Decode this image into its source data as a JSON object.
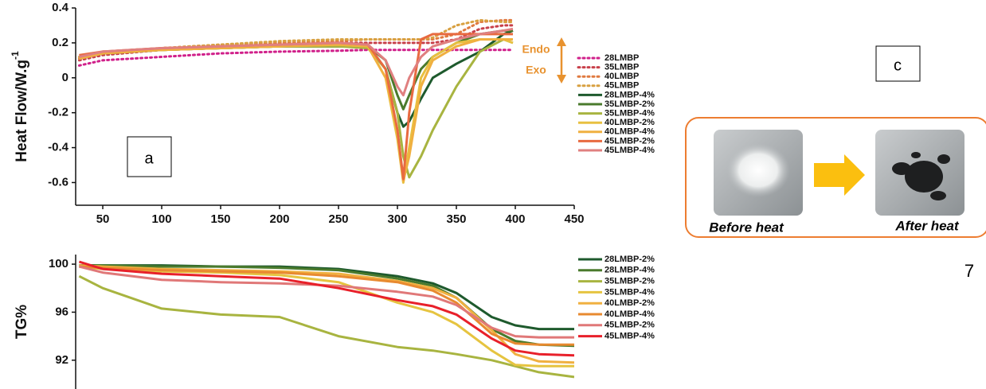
{
  "chart_data": [
    {
      "type": "line",
      "y_label": "Heat Flow/W.g",
      "y_label_sup": "-1",
      "annotations": [
        "Endo",
        "Exo"
      ],
      "xlim": [
        27,
        450
      ],
      "xticks": [
        50,
        100,
        150,
        200,
        250,
        300,
        350,
        400,
        450
      ],
      "ylim": [
        -0.73,
        0.4
      ],
      "yticks": [
        -0.6,
        -0.4,
        -0.2,
        0.0,
        0.2,
        0.4
      ],
      "x": [
        30,
        50,
        100,
        150,
        200,
        250,
        275,
        290,
        300,
        305,
        310,
        320,
        330,
        350,
        370,
        390,
        398
      ],
      "series": [
        {
          "name": "28LMBP",
          "color": "#d0208a",
          "line_style": "dotted",
          "values": [
            0.07,
            0.1,
            0.12,
            0.14,
            0.15,
            0.155,
            0.16,
            0.16,
            0.16,
            0.16,
            0.16,
            0.16,
            0.16,
            0.16,
            0.16,
            0.16,
            0.16
          ]
        },
        {
          "name": "35LMBP",
          "color": "#c8404a",
          "line_style": "dotted",
          "values": [
            0.1,
            0.13,
            0.16,
            0.18,
            0.19,
            0.2,
            0.2,
            0.2,
            0.2,
            0.2,
            0.2,
            0.2,
            0.2,
            0.22,
            0.28,
            0.3,
            0.3
          ]
        },
        {
          "name": "40LMBP",
          "color": "#e07a40",
          "line_style": "dotted",
          "values": [
            0.11,
            0.14,
            0.17,
            0.19,
            0.2,
            0.21,
            0.22,
            0.22,
            0.22,
            0.22,
            0.22,
            0.22,
            0.22,
            0.25,
            0.32,
            0.33,
            0.33
          ]
        },
        {
          "name": "45LMBP",
          "color": "#d8a040",
          "line_style": "dotted",
          "values": [
            0.12,
            0.15,
            0.17,
            0.19,
            0.21,
            0.22,
            0.22,
            0.22,
            0.22,
            0.22,
            0.22,
            0.22,
            0.23,
            0.3,
            0.33,
            0.32,
            0.32
          ]
        },
        {
          "name": "28LMBP-4%",
          "color": "#1e5a2d",
          "values": [
            0.12,
            0.14,
            0.16,
            0.17,
            0.18,
            0.18,
            0.18,
            0.05,
            -0.2,
            -0.28,
            -0.25,
            -0.12,
            0.0,
            0.08,
            0.15,
            0.25,
            0.27
          ]
        },
        {
          "name": "35LMBP-2%",
          "color": "#4a7a2c",
          "values": [
            0.12,
            0.14,
            0.16,
            0.17,
            0.18,
            0.18,
            0.18,
            0.1,
            -0.1,
            -0.18,
            -0.1,
            0.05,
            0.12,
            0.2,
            0.25,
            0.27,
            0.27
          ]
        },
        {
          "name": "35LMBP-4%",
          "color": "#a8b440",
          "values": [
            0.11,
            0.14,
            0.16,
            0.17,
            0.18,
            0.18,
            0.17,
            0.05,
            -0.2,
            -0.45,
            -0.57,
            -0.45,
            -0.3,
            -0.05,
            0.15,
            0.22,
            0.2
          ]
        },
        {
          "name": "40LMBP-2%",
          "color": "#e8c040",
          "values": [
            0.12,
            0.15,
            0.16,
            0.17,
            0.18,
            0.19,
            0.18,
            0.0,
            -0.35,
            -0.6,
            -0.4,
            0.0,
            0.12,
            0.2,
            0.22,
            0.22,
            0.2
          ]
        },
        {
          "name": "40LMBP-4%",
          "color": "#f0b040",
          "values": [
            0.11,
            0.14,
            0.16,
            0.17,
            0.18,
            0.19,
            0.18,
            0.0,
            -0.3,
            -0.59,
            -0.45,
            -0.05,
            0.1,
            0.18,
            0.22,
            0.22,
            0.22
          ]
        },
        {
          "name": "45LMBP-2%",
          "color": "#e86a40",
          "values": [
            0.13,
            0.15,
            0.17,
            0.18,
            0.19,
            0.2,
            0.19,
            0.05,
            -0.3,
            -0.58,
            -0.2,
            0.22,
            0.25,
            0.25,
            0.25,
            0.25,
            0.25
          ]
        },
        {
          "name": "45LMBP-4%",
          "color": "#e08080",
          "values": [
            0.12,
            0.15,
            0.17,
            0.18,
            0.19,
            0.2,
            0.19,
            0.1,
            -0.05,
            -0.1,
            0.0,
            0.12,
            0.18,
            0.22,
            0.25,
            0.27,
            0.28
          ]
        }
      ]
    },
    {
      "type": "line",
      "y_label": "TG%",
      "xlim": [
        27,
        450
      ],
      "ylim": [
        89.6,
        100.8
      ],
      "yticks": [
        92,
        96,
        100
      ],
      "x": [
        30,
        50,
        100,
        150,
        200,
        250,
        300,
        330,
        350,
        380,
        400,
        420,
        450
      ],
      "series": [
        {
          "name": "28LMBP-2%",
          "color": "#1e5a2d",
          "values": [
            99.9,
            99.9,
            99.9,
            99.8,
            99.8,
            99.6,
            99.0,
            98.4,
            97.6,
            95.6,
            94.9,
            94.6,
            94.6
          ]
        },
        {
          "name": "28LMBP-4%",
          "color": "#4a7a2c",
          "values": [
            99.9,
            99.9,
            99.8,
            99.8,
            99.7,
            99.5,
            98.8,
            98.2,
            97.2,
            94.6,
            93.6,
            93.3,
            93.2
          ]
        },
        {
          "name": "35LMBP-2%",
          "color": "#a8b440",
          "values": [
            99.0,
            98.0,
            96.3,
            95.8,
            95.6,
            94.0,
            93.1,
            92.8,
            92.5,
            92.0,
            91.5,
            91.0,
            90.6
          ]
        },
        {
          "name": "35LMBP-4%",
          "color": "#e6c440",
          "values": [
            99.8,
            99.6,
            99.4,
            99.3,
            99.1,
            98.5,
            96.8,
            96.0,
            95.0,
            92.8,
            91.6,
            91.5,
            91.5
          ]
        },
        {
          "name": "40LMBP-2%",
          "color": "#f0b040",
          "values": [
            99.9,
            99.8,
            99.6,
            99.5,
            99.4,
            99.2,
            98.6,
            98.0,
            97.2,
            94.5,
            92.5,
            91.9,
            91.8
          ]
        },
        {
          "name": "40LMBP-4%",
          "color": "#e88a30",
          "values": [
            99.8,
            99.7,
            99.5,
            99.4,
            99.3,
            99.0,
            98.5,
            97.8,
            96.8,
            94.2,
            93.4,
            93.3,
            93.3
          ]
        },
        {
          "name": "45LMBP-2%",
          "color": "#e07878",
          "values": [
            99.8,
            99.3,
            98.7,
            98.5,
            98.4,
            98.2,
            97.7,
            97.3,
            96.6,
            94.7,
            94.0,
            93.9,
            93.9
          ]
        },
        {
          "name": "45LMBP-4%",
          "color": "#e8202a",
          "values": [
            100.2,
            99.6,
            99.2,
            99.0,
            98.8,
            98.0,
            97.0,
            96.5,
            95.8,
            93.8,
            92.8,
            92.5,
            92.4
          ]
        }
      ]
    }
  ],
  "panel_labels": [
    "a",
    "c"
  ],
  "photo_captions": [
    "Before heat",
    "After heat"
  ],
  "page_number": "7"
}
